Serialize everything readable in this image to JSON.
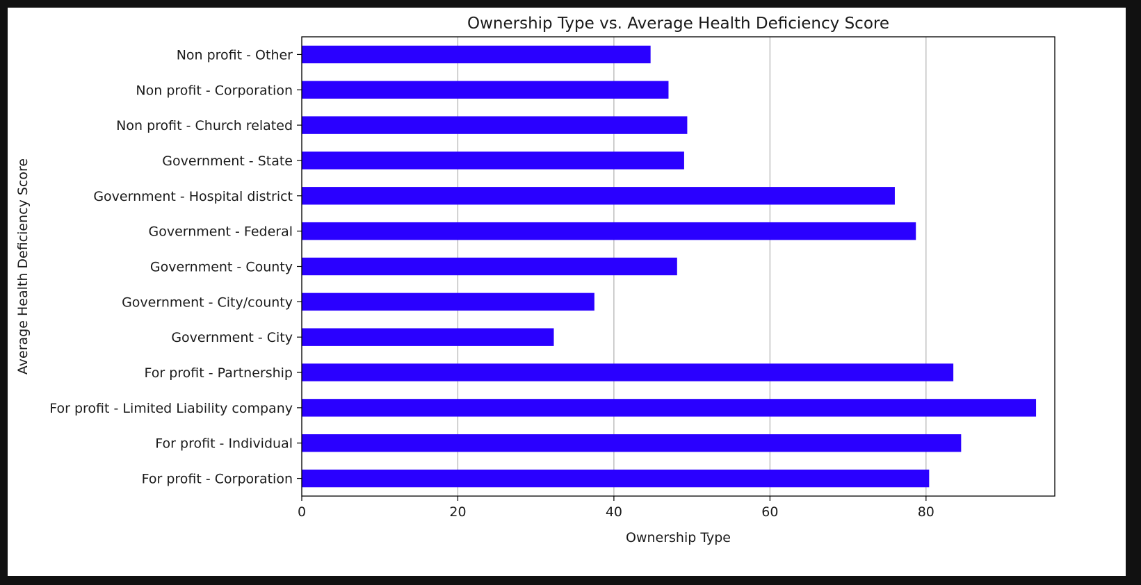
{
  "chart_data": {
    "type": "bar",
    "orientation": "horizontal",
    "title": "Ownership Type vs. Average Health Deficiency Score",
    "xlabel": "Ownership Type",
    "ylabel": "Average Health Deficiency Score",
    "xlim": [
      0,
      96.5
    ],
    "xticks": [
      0,
      20,
      40,
      60,
      80
    ],
    "grid": "x",
    "bar_color": "#2a00ff",
    "categories": [
      "For profit - Corporation",
      "For profit - Individual",
      "For profit - Limited Liability company",
      "For profit - Partnership",
      "Government - City",
      "Government - City/county",
      "Government - County",
      "Government - Federal",
      "Government - Hospital district",
      "Government - State",
      "Non profit - Church related",
      "Non profit - Corporation",
      "Non profit - Other"
    ],
    "values": [
      80.4,
      84.5,
      94.1,
      83.5,
      32.3,
      37.5,
      48.1,
      78.7,
      76.0,
      49.0,
      49.4,
      47.0,
      44.7
    ]
  }
}
